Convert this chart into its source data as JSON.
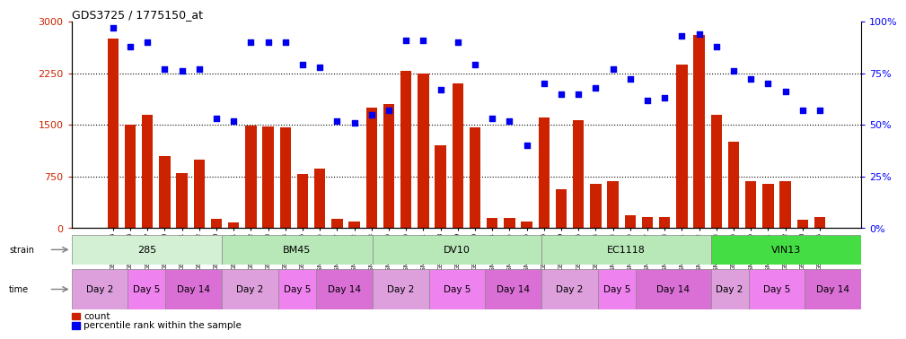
{
  "title": "GDS3725 / 1775150_at",
  "samples": [
    "GSM291115",
    "GSM291116",
    "GSM291117",
    "GSM291140",
    "GSM291141",
    "GSM291142",
    "GSM291000",
    "GSM291001",
    "GSM291462",
    "GSM291523",
    "GSM291524",
    "GSM291555",
    "GSM2968856",
    "GSM2968857",
    "GSM2909992",
    "GSM2909993",
    "GSM2909989",
    "GSM2909990",
    "GSM2909991",
    "GSM291538",
    "GSM291539",
    "GSM291540",
    "GSM2909994",
    "GSM2909995",
    "GSM2909996",
    "GSM291435",
    "GSM291439",
    "GSM291445",
    "GSM291554",
    "GSM2968858",
    "GSM2968859",
    "GSM2909997",
    "GSM2909998",
    "GSM2909901",
    "GSM2909902",
    "GSM2909903",
    "GSM291525",
    "GSM2968860",
    "GSM2968861",
    "GSM291002",
    "GSM291003",
    "GSM292045"
  ],
  "counts": [
    2750,
    1500,
    1650,
    1050,
    800,
    1000,
    130,
    80,
    1490,
    1470,
    1460,
    790,
    870,
    130,
    100,
    1750,
    1800,
    2280,
    2250,
    1200,
    2100,
    1460,
    150,
    145,
    90,
    1600,
    560,
    1570,
    640,
    680,
    190,
    160,
    165,
    2380,
    2800,
    1650,
    1260,
    680,
    640,
    680,
    120,
    160
  ],
  "percentiles": [
    97,
    88,
    90,
    77,
    76,
    77,
    53,
    52,
    90,
    90,
    90,
    79,
    78,
    52,
    51,
    55,
    57,
    91,
    91,
    67,
    90,
    79,
    53,
    52,
    40,
    70,
    65,
    65,
    68,
    77,
    72,
    62,
    63,
    93,
    94,
    88,
    76,
    72,
    70,
    66,
    57,
    57
  ],
  "strains": [
    "285",
    "BM45",
    "DV10",
    "EC1118",
    "VIN13"
  ],
  "strain_starts": [
    0,
    8,
    16,
    25,
    34
  ],
  "strain_ends": [
    8,
    16,
    25,
    34,
    42
  ],
  "strain_colors": [
    "#d4f0d4",
    "#b8e8b8",
    "#b8e8b8",
    "#b8e8b8",
    "#44dd44"
  ],
  "time_groups": [
    [
      0,
      3,
      "Day 2",
      "#DDA0DD"
    ],
    [
      3,
      5,
      "Day 5",
      "#EE82EE"
    ],
    [
      5,
      8,
      "Day 14",
      "#DA70D6"
    ],
    [
      8,
      11,
      "Day 2",
      "#DDA0DD"
    ],
    [
      11,
      13,
      "Day 5",
      "#EE82EE"
    ],
    [
      13,
      16,
      "Day 14",
      "#DA70D6"
    ],
    [
      16,
      19,
      "Day 2",
      "#DDA0DD"
    ],
    [
      19,
      22,
      "Day 5",
      "#EE82EE"
    ],
    [
      22,
      25,
      "Day 14",
      "#DA70D6"
    ],
    [
      25,
      28,
      "Day 2",
      "#DDA0DD"
    ],
    [
      28,
      30,
      "Day 5",
      "#EE82EE"
    ],
    [
      30,
      34,
      "Day 14",
      "#DA70D6"
    ],
    [
      34,
      36,
      "Day 2",
      "#DDA0DD"
    ],
    [
      36,
      39,
      "Day 5",
      "#EE82EE"
    ],
    [
      39,
      42,
      "Day 14",
      "#DA70D6"
    ]
  ],
  "bar_color": "#CC2200",
  "dot_color": "#0000EE",
  "ylim_left": [
    0,
    3000
  ],
  "ylim_right": [
    0,
    100
  ],
  "yticks_left": [
    0,
    750,
    1500,
    2250,
    3000
  ],
  "yticks_right": [
    0,
    25,
    50,
    75,
    100
  ]
}
